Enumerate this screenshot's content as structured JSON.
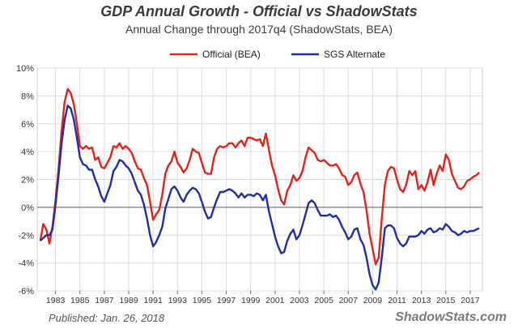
{
  "chart_data": {
    "type": "line",
    "title": "GDP Annual Growth - Official vs ShadowStats",
    "subtitle": "Annual Change through 2017q4  (ShadowStats, BEA)",
    "xlabel": "",
    "ylabel": "",
    "ylim": [
      -6,
      10
    ],
    "xlim": [
      1981.5,
      2018.0
    ],
    "y_ticks": [
      "-6%",
      "-4%",
      "-2%",
      "0%",
      "2%",
      "4%",
      "6%",
      "8%",
      "10%"
    ],
    "y_tick_values": [
      -6,
      -4,
      -2,
      0,
      2,
      4,
      6,
      8,
      10
    ],
    "x_ticks": [
      "1983",
      "1985",
      "1987",
      "1989",
      "1991",
      "1993",
      "1995",
      "1997",
      "1999",
      "2001",
      "2003",
      "2005",
      "2007",
      "2009",
      "2011",
      "2013",
      "2015",
      "2017"
    ],
    "x_tick_values": [
      1983,
      1985,
      1987,
      1989,
      1991,
      1993,
      1995,
      1997,
      1999,
      2001,
      2003,
      2005,
      2007,
      2009,
      2011,
      2013,
      2015,
      2017
    ],
    "grid": true,
    "legend_position": "top-center",
    "series": [
      {
        "name": "Official (BEA)",
        "color": "#e2231a",
        "points": [
          [
            1981.75,
            -2.4
          ],
          [
            1982.0,
            -1.2
          ],
          [
            1982.25,
            -1.6
          ],
          [
            1982.5,
            -2.6
          ],
          [
            1982.75,
            -1.4
          ],
          [
            1983.0,
            0.5
          ],
          [
            1983.25,
            2.8
          ],
          [
            1983.5,
            5.5
          ],
          [
            1983.75,
            7.6
          ],
          [
            1984.0,
            8.5
          ],
          [
            1984.25,
            8.2
          ],
          [
            1984.5,
            7.4
          ],
          [
            1984.75,
            6.0
          ],
          [
            1985.0,
            4.4
          ],
          [
            1985.25,
            4.2
          ],
          [
            1985.5,
            4.4
          ],
          [
            1985.75,
            4.2
          ],
          [
            1986.0,
            4.3
          ],
          [
            1986.25,
            3.4
          ],
          [
            1986.5,
            3.6
          ],
          [
            1986.75,
            2.9
          ],
          [
            1987.0,
            2.8
          ],
          [
            1987.25,
            3.2
          ],
          [
            1987.5,
            3.6
          ],
          [
            1987.75,
            4.4
          ],
          [
            1988.0,
            4.3
          ],
          [
            1988.25,
            4.6
          ],
          [
            1988.5,
            4.2
          ],
          [
            1988.75,
            4.4
          ],
          [
            1989.0,
            4.2
          ],
          [
            1989.25,
            3.9
          ],
          [
            1989.5,
            3.3
          ],
          [
            1989.75,
            2.8
          ],
          [
            1990.0,
            2.7
          ],
          [
            1990.25,
            2.1
          ],
          [
            1990.5,
            1.6
          ],
          [
            1990.75,
            0.4
          ],
          [
            1991.0,
            -0.9
          ],
          [
            1991.25,
            -0.5
          ],
          [
            1991.5,
            -0.2
          ],
          [
            1991.75,
            0.9
          ],
          [
            1992.0,
            2.4
          ],
          [
            1992.25,
            3.0
          ],
          [
            1992.5,
            3.3
          ],
          [
            1992.75,
            4.0
          ],
          [
            1993.0,
            3.2
          ],
          [
            1993.25,
            2.9
          ],
          [
            1993.5,
            2.5
          ],
          [
            1993.75,
            2.8
          ],
          [
            1994.0,
            3.4
          ],
          [
            1994.25,
            4.2
          ],
          [
            1994.5,
            4.0
          ],
          [
            1994.75,
            3.9
          ],
          [
            1995.0,
            3.2
          ],
          [
            1995.25,
            2.5
          ],
          [
            1995.5,
            2.4
          ],
          [
            1995.75,
            2.4
          ],
          [
            1996.0,
            3.6
          ],
          [
            1996.25,
            4.2
          ],
          [
            1996.5,
            4.4
          ],
          [
            1996.75,
            4.3
          ],
          [
            1997.0,
            4.4
          ],
          [
            1997.25,
            4.6
          ],
          [
            1997.5,
            4.6
          ],
          [
            1997.75,
            4.3
          ],
          [
            1998.0,
            4.6
          ],
          [
            1998.25,
            4.8
          ],
          [
            1998.5,
            4.4
          ],
          [
            1998.75,
            5.0
          ],
          [
            1999.0,
            5.0
          ],
          [
            1999.25,
            4.9
          ],
          [
            1999.5,
            4.8
          ],
          [
            1999.75,
            4.9
          ],
          [
            2000.0,
            4.4
          ],
          [
            2000.25,
            5.3
          ],
          [
            2000.5,
            4.1
          ],
          [
            2000.75,
            3.0
          ],
          [
            2001.0,
            2.3
          ],
          [
            2001.25,
            1.3
          ],
          [
            2001.5,
            0.5
          ],
          [
            2001.75,
            0.2
          ],
          [
            2002.0,
            1.2
          ],
          [
            2002.25,
            1.6
          ],
          [
            2002.5,
            2.3
          ],
          [
            2002.75,
            1.9
          ],
          [
            2003.0,
            2.1
          ],
          [
            2003.25,
            2.6
          ],
          [
            2003.5,
            3.6
          ],
          [
            2003.75,
            4.3
          ],
          [
            2004.0,
            4.1
          ],
          [
            2004.25,
            3.9
          ],
          [
            2004.5,
            3.4
          ],
          [
            2004.75,
            3.3
          ],
          [
            2005.0,
            3.4
          ],
          [
            2005.25,
            3.2
          ],
          [
            2005.5,
            3.0
          ],
          [
            2005.75,
            3.0
          ],
          [
            2006.0,
            3.1
          ],
          [
            2006.25,
            2.8
          ],
          [
            2006.5,
            2.3
          ],
          [
            2006.75,
            2.2
          ],
          [
            2007.0,
            1.6
          ],
          [
            2007.25,
            1.8
          ],
          [
            2007.5,
            2.3
          ],
          [
            2007.75,
            2.5
          ],
          [
            2008.0,
            1.7
          ],
          [
            2008.25,
            1.1
          ],
          [
            2008.5,
            -0.2
          ],
          [
            2008.75,
            -1.9
          ],
          [
            2009.0,
            -3.0
          ],
          [
            2009.25,
            -4.1
          ],
          [
            2009.5,
            -3.6
          ],
          [
            2009.75,
            -0.8
          ],
          [
            2010.0,
            1.6
          ],
          [
            2010.25,
            2.6
          ],
          [
            2010.5,
            2.9
          ],
          [
            2010.75,
            2.8
          ],
          [
            2011.0,
            2.0
          ],
          [
            2011.25,
            1.3
          ],
          [
            2011.5,
            1.1
          ],
          [
            2011.75,
            1.6
          ],
          [
            2012.0,
            2.6
          ],
          [
            2012.25,
            2.3
          ],
          [
            2012.5,
            2.6
          ],
          [
            2012.75,
            1.3
          ],
          [
            2013.0,
            1.6
          ],
          [
            2013.25,
            1.2
          ],
          [
            2013.5,
            1.8
          ],
          [
            2013.75,
            2.7
          ],
          [
            2014.0,
            1.6
          ],
          [
            2014.25,
            2.4
          ],
          [
            2014.5,
            3.0
          ],
          [
            2014.75,
            2.6
          ],
          [
            2015.0,
            3.8
          ],
          [
            2015.25,
            3.4
          ],
          [
            2015.5,
            2.4
          ],
          [
            2015.75,
            1.9
          ],
          [
            2016.0,
            1.4
          ],
          [
            2016.25,
            1.3
          ],
          [
            2016.5,
            1.5
          ],
          [
            2016.75,
            1.9
          ],
          [
            2017.0,
            2.0
          ],
          [
            2017.25,
            2.2
          ],
          [
            2017.5,
            2.3
          ],
          [
            2017.75,
            2.5
          ]
        ]
      },
      {
        "name": "SGS Alternate",
        "color": "#1f2ea6",
        "points": [
          [
            1981.75,
            -2.4
          ],
          [
            1982.0,
            -2.2
          ],
          [
            1982.25,
            -2.0
          ],
          [
            1982.5,
            -2.0
          ],
          [
            1982.75,
            -1.6
          ],
          [
            1983.0,
            0.2
          ],
          [
            1983.25,
            2.3
          ],
          [
            1983.5,
            4.6
          ],
          [
            1983.75,
            6.3
          ],
          [
            1984.0,
            7.3
          ],
          [
            1984.25,
            7.1
          ],
          [
            1984.5,
            6.3
          ],
          [
            1984.75,
            5.0
          ],
          [
            1985.0,
            3.6
          ],
          [
            1985.25,
            3.1
          ],
          [
            1985.5,
            3.0
          ],
          [
            1985.75,
            2.7
          ],
          [
            1986.0,
            2.7
          ],
          [
            1986.25,
            2.0
          ],
          [
            1986.5,
            1.5
          ],
          [
            1986.75,
            0.8
          ],
          [
            1987.0,
            0.4
          ],
          [
            1987.25,
            1.0
          ],
          [
            1987.5,
            1.6
          ],
          [
            1987.75,
            2.6
          ],
          [
            1988.0,
            2.9
          ],
          [
            1988.25,
            3.4
          ],
          [
            1988.5,
            3.3
          ],
          [
            1988.75,
            3.0
          ],
          [
            1989.0,
            2.8
          ],
          [
            1989.25,
            2.4
          ],
          [
            1989.5,
            1.8
          ],
          [
            1989.75,
            1.2
          ],
          [
            1990.0,
            0.9
          ],
          [
            1990.25,
            0.2
          ],
          [
            1990.5,
            -0.8
          ],
          [
            1990.75,
            -2.0
          ],
          [
            1991.0,
            -2.8
          ],
          [
            1991.25,
            -2.5
          ],
          [
            1991.5,
            -2.0
          ],
          [
            1991.75,
            -1.4
          ],
          [
            1992.0,
            -0.1
          ],
          [
            1992.25,
            0.6
          ],
          [
            1992.5,
            1.3
          ],
          [
            1992.75,
            1.5
          ],
          [
            1993.0,
            1.2
          ],
          [
            1993.25,
            0.7
          ],
          [
            1993.5,
            0.4
          ],
          [
            1993.75,
            0.9
          ],
          [
            1994.0,
            1.2
          ],
          [
            1994.25,
            1.4
          ],
          [
            1994.5,
            1.3
          ],
          [
            1994.75,
            1.0
          ],
          [
            1995.0,
            0.4
          ],
          [
            1995.25,
            -0.3
          ],
          [
            1995.5,
            -0.8
          ],
          [
            1995.75,
            -0.7
          ],
          [
            1996.0,
            0.0
          ],
          [
            1996.25,
            0.6
          ],
          [
            1996.5,
            1.1
          ],
          [
            1996.75,
            1.1
          ],
          [
            1997.0,
            1.2
          ],
          [
            1997.25,
            1.3
          ],
          [
            1997.5,
            1.2
          ],
          [
            1997.75,
            1.0
          ],
          [
            1998.0,
            0.7
          ],
          [
            1998.25,
            1.0
          ],
          [
            1998.5,
            0.7
          ],
          [
            1998.75,
            0.9
          ],
          [
            1999.0,
            0.9
          ],
          [
            1999.25,
            0.8
          ],
          [
            1999.5,
            1.0
          ],
          [
            1999.75,
            0.9
          ],
          [
            2000.0,
            0.5
          ],
          [
            2000.25,
            0.9
          ],
          [
            2000.5,
            -0.3
          ],
          [
            2000.75,
            -1.2
          ],
          [
            2001.0,
            -2.1
          ],
          [
            2001.25,
            -2.8
          ],
          [
            2001.5,
            -3.3
          ],
          [
            2001.75,
            -3.2
          ],
          [
            2002.0,
            -2.4
          ],
          [
            2002.25,
            -1.9
          ],
          [
            2002.5,
            -1.6
          ],
          [
            2002.75,
            -2.3
          ],
          [
            2003.0,
            -2.0
          ],
          [
            2003.25,
            -1.3
          ],
          [
            2003.5,
            -0.5
          ],
          [
            2003.75,
            0.3
          ],
          [
            2004.0,
            0.5
          ],
          [
            2004.25,
            0.3
          ],
          [
            2004.5,
            -0.2
          ],
          [
            2004.75,
            -0.6
          ],
          [
            2005.0,
            -0.6
          ],
          [
            2005.25,
            -0.6
          ],
          [
            2005.5,
            -0.5
          ],
          [
            2005.75,
            -0.7
          ],
          [
            2006.0,
            -0.6
          ],
          [
            2006.25,
            -0.9
          ],
          [
            2006.5,
            -1.4
          ],
          [
            2006.75,
            -1.8
          ],
          [
            2007.0,
            -2.3
          ],
          [
            2007.25,
            -2.1
          ],
          [
            2007.5,
            -1.6
          ],
          [
            2007.75,
            -1.5
          ],
          [
            2008.0,
            -2.3
          ],
          [
            2008.25,
            -2.7
          ],
          [
            2008.5,
            -3.6
          ],
          [
            2008.75,
            -4.8
          ],
          [
            2009.0,
            -5.6
          ],
          [
            2009.25,
            -5.9
          ],
          [
            2009.5,
            -5.4
          ],
          [
            2009.75,
            -3.6
          ],
          [
            2010.0,
            -1.5
          ],
          [
            2010.25,
            -1.3
          ],
          [
            2010.5,
            -1.3
          ],
          [
            2010.75,
            -1.5
          ],
          [
            2011.0,
            -2.2
          ],
          [
            2011.25,
            -2.6
          ],
          [
            2011.5,
            -2.8
          ],
          [
            2011.75,
            -2.6
          ],
          [
            2012.0,
            -2.1
          ],
          [
            2012.25,
            -2.1
          ],
          [
            2012.5,
            -2.1
          ],
          [
            2012.75,
            -2.0
          ],
          [
            2013.0,
            -1.7
          ],
          [
            2013.25,
            -1.9
          ],
          [
            2013.5,
            -1.6
          ],
          [
            2013.75,
            -1.5
          ],
          [
            2014.0,
            -1.8
          ],
          [
            2014.25,
            -1.7
          ],
          [
            2014.5,
            -1.5
          ],
          [
            2014.75,
            -1.6
          ],
          [
            2015.0,
            -1.2
          ],
          [
            2015.25,
            -1.4
          ],
          [
            2015.5,
            -1.7
          ],
          [
            2015.75,
            -1.8
          ],
          [
            2016.0,
            -2.0
          ],
          [
            2016.25,
            -1.9
          ],
          [
            2016.5,
            -1.7
          ],
          [
            2016.75,
            -1.8
          ],
          [
            2017.0,
            -1.7
          ],
          [
            2017.25,
            -1.7
          ],
          [
            2017.5,
            -1.6
          ],
          [
            2017.75,
            -1.5
          ]
        ]
      }
    ]
  },
  "footer": {
    "published": "Published: Jan. 26, 2018",
    "brand": "ShadowStats.com"
  }
}
